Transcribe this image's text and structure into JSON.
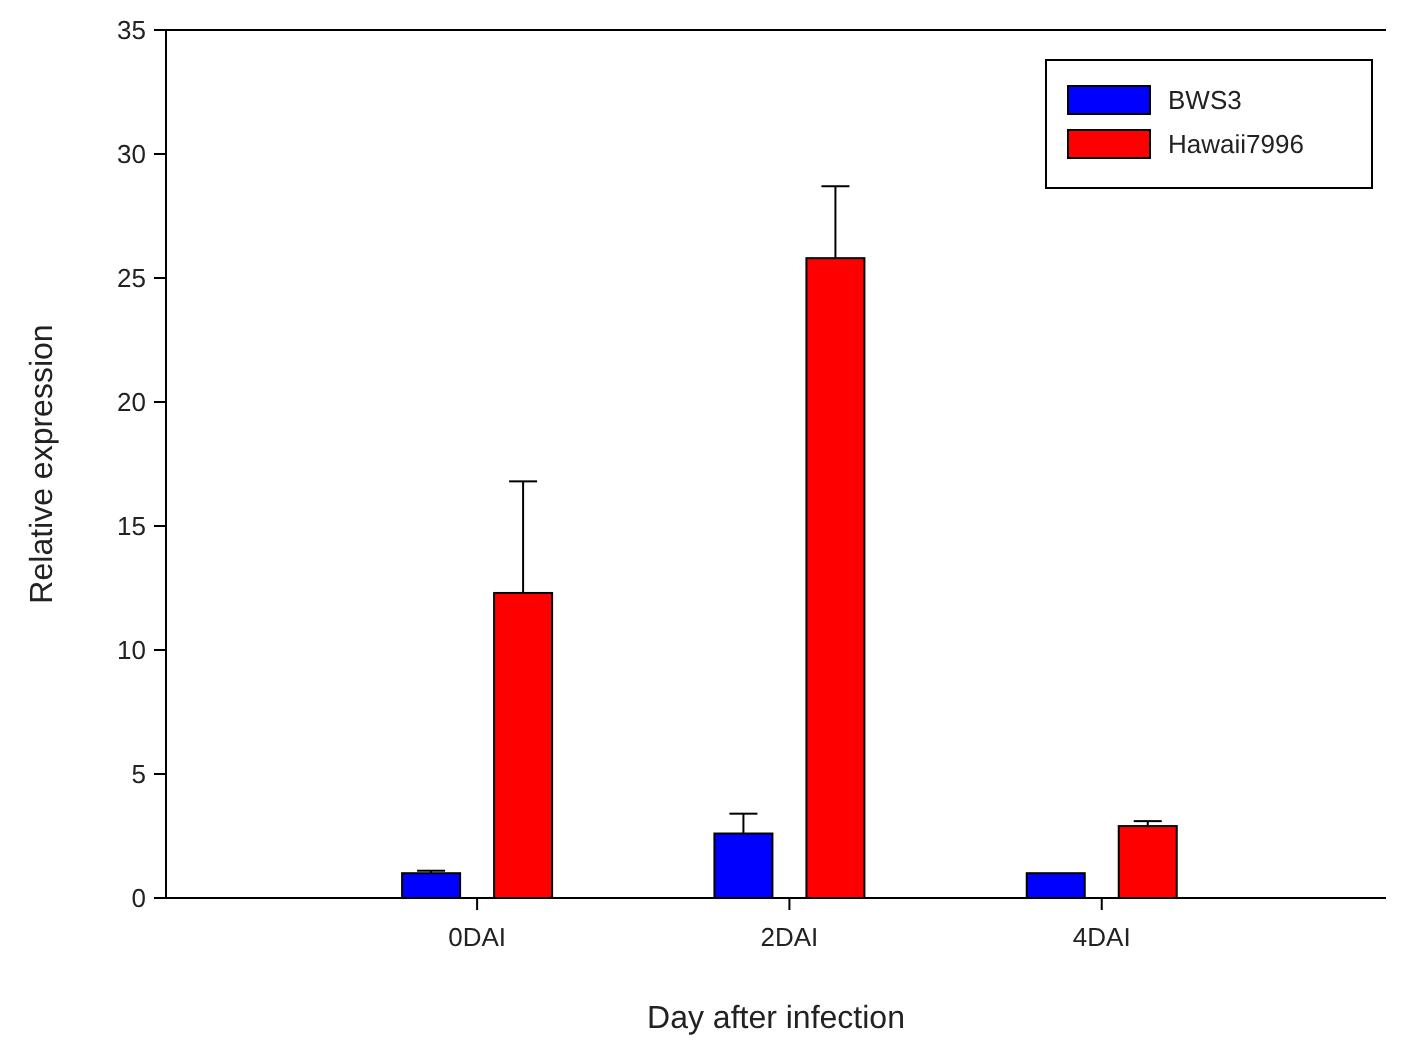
{
  "chart_data": {
    "type": "bar",
    "xlabel": "Day after infection",
    "ylabel": "Relative expression",
    "categories": [
      "0DAI",
      "2DAI",
      "4DAI"
    ],
    "series": [
      {
        "name": "BWS3",
        "color": "#0000ff",
        "values": [
          1.0,
          2.6,
          1.0
        ],
        "errors": [
          0.1,
          0.8,
          null
        ]
      },
      {
        "name": "Hawaii7996",
        "color": "#ff0000",
        "values": [
          12.3,
          25.8,
          2.9
        ],
        "errors": [
          4.5,
          2.9,
          0.2
        ]
      }
    ],
    "ylim": [
      0,
      35
    ],
    "yticks": [
      0,
      5,
      10,
      15,
      20,
      25,
      30,
      35
    ],
    "grid": false,
    "legend": "top right"
  }
}
